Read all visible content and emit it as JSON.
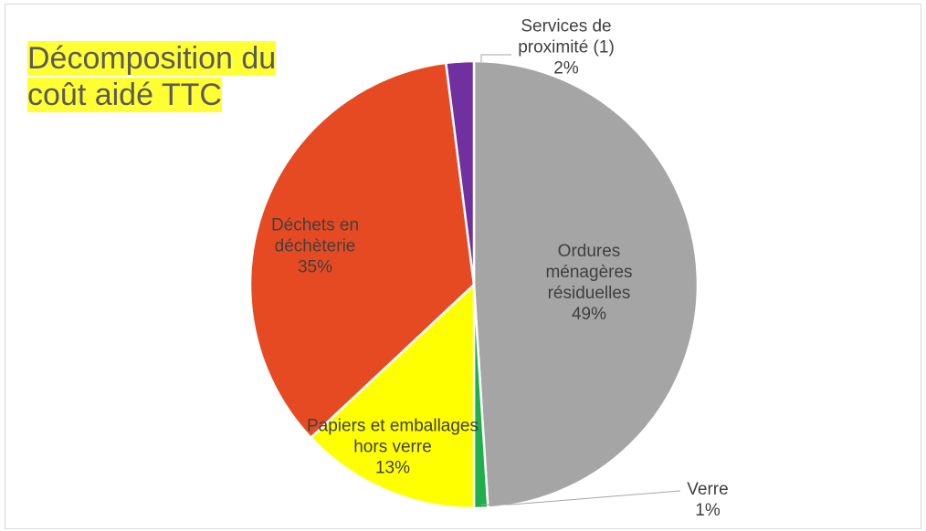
{
  "chart_data": {
    "type": "pie",
    "title": "Décomposition du coût aidé TTC",
    "categories": [
      "Ordures ménagères résiduelles",
      "Verre",
      "Papiers et emballages hors verre",
      "Déchets en déchèterie",
      "Services de proximité (1)"
    ],
    "values": [
      49,
      1,
      13,
      35,
      2
    ],
    "value_labels": [
      "49%",
      "1%",
      "13%",
      "35%",
      "2%"
    ],
    "colors": [
      "#a5a5a5",
      "#1fae4b",
      "#ffff00",
      "#e64a23",
      "#7030a0"
    ]
  }
}
